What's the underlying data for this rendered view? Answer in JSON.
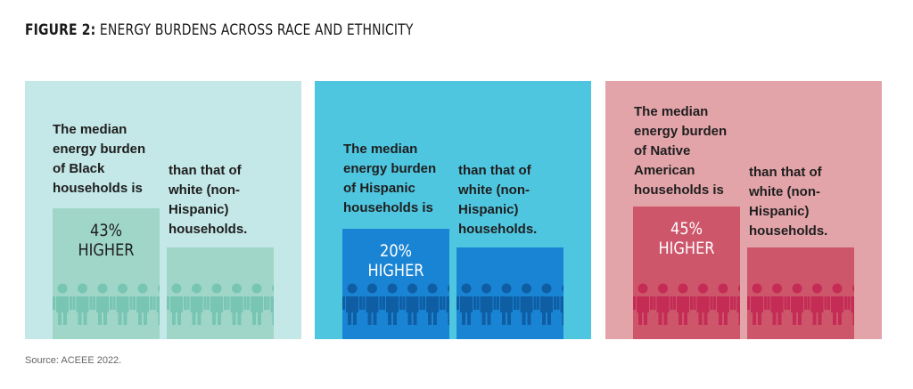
{
  "title": {
    "bold": "FIGURE 2:",
    "rest": " ENERGY BURDENS ACROSS RACE AND ETHNICITY"
  },
  "source": "Source: ACEEE 2022.",
  "panels": [
    {
      "desc": "The median\nenergy burden\nof Black\nhouseholds is",
      "pct": "43% HIGHER",
      "compare": "than that of\nwhite (non-\nHispanic)\nhouseholds.",
      "colors": {
        "bg": "#c4e7e7",
        "bar_a": "#9fd6c7",
        "bar_b": "#9fd6c7",
        "people": "#78c5b4",
        "pct_text": "#1e1e1e"
      }
    },
    {
      "desc": "The median\nenergy burden\nof Hispanic\nhouseholds is",
      "pct": "20% HIGHER",
      "compare": "than that of\nwhite (non-\nHispanic)\nhouseholds.",
      "colors": {
        "bg": "#4fc6e0",
        "bar_a": "#1a84d4",
        "bar_b": "#1a84d4",
        "people": "#0f5ea3",
        "pct_text": "#ffffff"
      }
    },
    {
      "desc": "The median\nenergy burden\nof Native\nAmerican\nhouseholds is",
      "pct": "45% HIGHER",
      "compare": "than that of\nwhite (non-\nHispanic)\nhouseholds.",
      "colors": {
        "bg": "#e3a4a9",
        "bar_a": "#cd566b",
        "bar_b": "#cd566b",
        "people": "#c42c55",
        "pct_text": "#ffffff"
      }
    }
  ],
  "chart_data": {
    "type": "bar",
    "title": "FIGURE 2: ENERGY BURDENS ACROSS RACE AND ETHNICITY",
    "categories": [
      "Black",
      "Hispanic",
      "Native American"
    ],
    "series": [
      {
        "values": [
          43,
          20,
          45
        ]
      }
    ],
    "ylabel": ""
  }
}
